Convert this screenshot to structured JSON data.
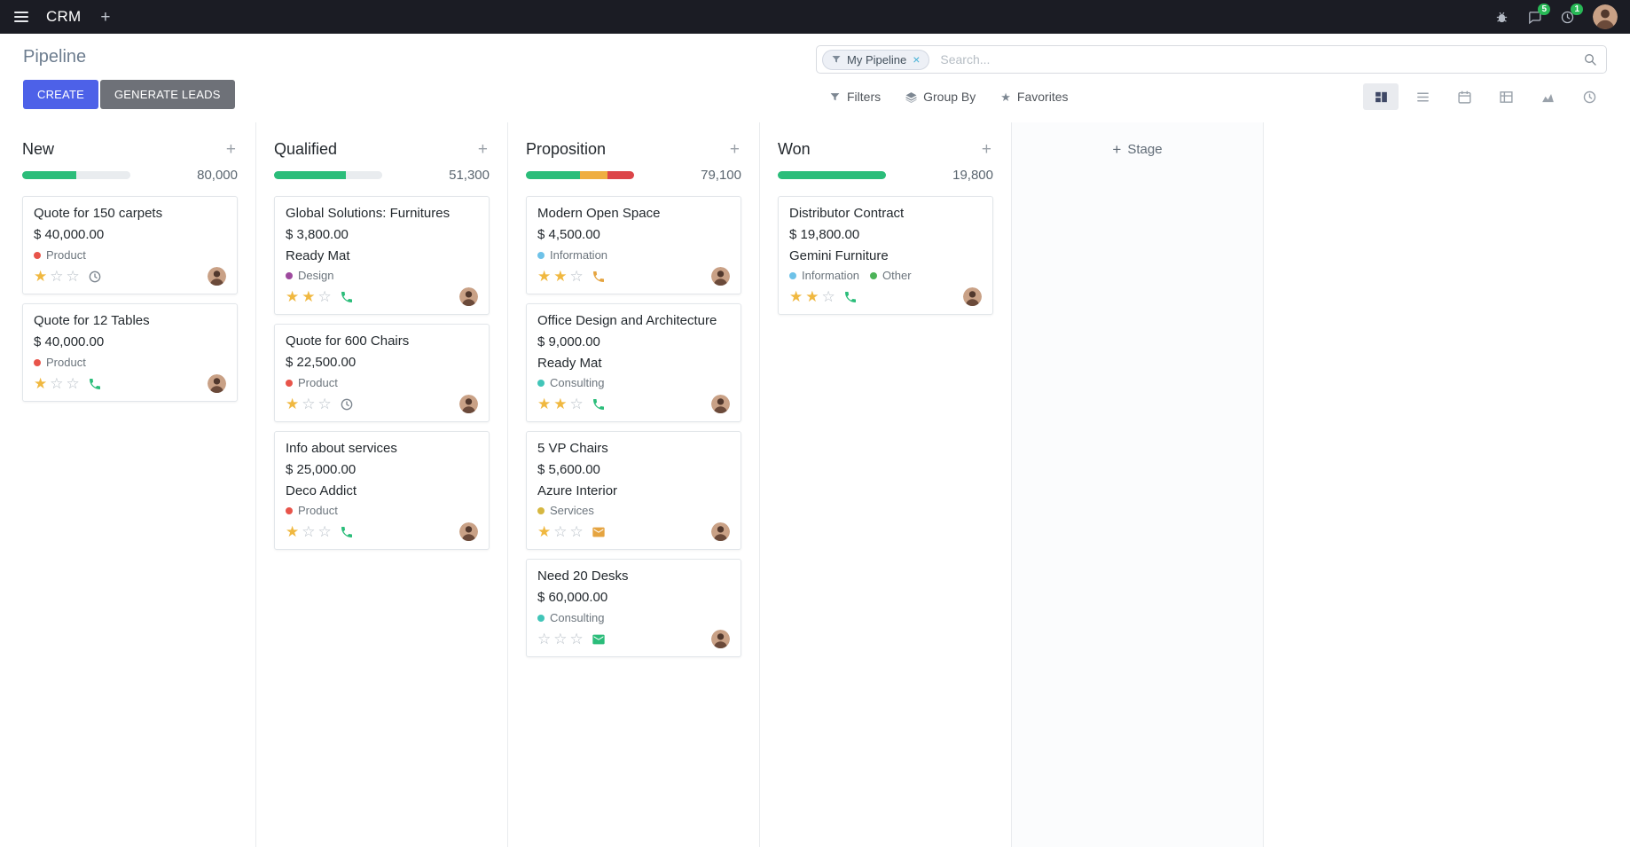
{
  "navbar": {
    "app_name": "CRM",
    "messages_badge": "5",
    "activities_badge": "1"
  },
  "control_panel": {
    "title": "Pipeline",
    "buttons": {
      "create": "CREATE",
      "generate_leads": "GENERATE LEADS"
    },
    "search": {
      "facet": "My Pipeline",
      "placeholder": "Search..."
    },
    "menus": {
      "filters": "Filters",
      "group_by": "Group By",
      "favorites": "Favorites"
    }
  },
  "colors": {
    "primary": "#4d61e8",
    "success": "#2bbd7a",
    "warning": "#efae41",
    "danger": "#dc4549",
    "star": "#f0b840"
  },
  "board": {
    "add_stage_label": "Stage",
    "columns": [
      {
        "name": "New",
        "total": "80,000",
        "progress": [
          {
            "color": "#2bbd7a",
            "pct": 50
          },
          {
            "color": "#e9ecef",
            "pct": 50
          }
        ],
        "cards": [
          {
            "title": "Quote for 150 carpets",
            "amount": "$ 40,000.00",
            "partner": "",
            "tags": [
              {
                "label": "Product",
                "color": "#e8544a"
              }
            ],
            "stars": 1,
            "activity": {
              "icon": "clock-icon",
              "color": "#7d868f"
            }
          },
          {
            "title": "Quote for 12 Tables",
            "amount": "$ 40,000.00",
            "partner": "",
            "tags": [
              {
                "label": "Product",
                "color": "#e8544a"
              }
            ],
            "stars": 1,
            "activity": {
              "icon": "phone-icon",
              "color": "#2bbd7a"
            }
          }
        ]
      },
      {
        "name": "Qualified",
        "total": "51,300",
        "progress": [
          {
            "color": "#2bbd7a",
            "pct": 66.7
          },
          {
            "color": "#e9ecef",
            "pct": 33.3
          }
        ],
        "cards": [
          {
            "title": "Global Solutions: Furnitures",
            "amount": "$ 3,800.00",
            "partner": "Ready Mat",
            "tags": [
              {
                "label": "Design",
                "color": "#9e4a9e"
              }
            ],
            "stars": 2,
            "activity": {
              "icon": "phone-icon",
              "color": "#2bbd7a"
            }
          },
          {
            "title": "Quote for 600 Chairs",
            "amount": "$ 22,500.00",
            "partner": "",
            "tags": [
              {
                "label": "Product",
                "color": "#e8544a"
              }
            ],
            "stars": 1,
            "activity": {
              "icon": "clock-icon",
              "color": "#7d868f"
            }
          },
          {
            "title": "Info about services",
            "amount": "$ 25,000.00",
            "partner": "Deco Addict",
            "tags": [
              {
                "label": "Product",
                "color": "#e8544a"
              }
            ],
            "stars": 1,
            "activity": {
              "icon": "phone-icon",
              "color": "#2bbd7a"
            }
          }
        ]
      },
      {
        "name": "Proposition",
        "total": "79,100",
        "progress": [
          {
            "color": "#2bbd7a",
            "pct": 50
          },
          {
            "color": "#efae41",
            "pct": 25
          },
          {
            "color": "#dc4549",
            "pct": 25
          }
        ],
        "cards": [
          {
            "title": "Modern Open Space",
            "amount": "$ 4,500.00",
            "partner": "",
            "tags": [
              {
                "label": "Information",
                "color": "#6ec2e8"
              }
            ],
            "stars": 2,
            "activity": {
              "icon": "phone-icon",
              "color": "#e5a440"
            }
          },
          {
            "title": "Office Design and Architecture",
            "amount": "$ 9,000.00",
            "partner": "Ready Mat",
            "tags": [
              {
                "label": "Consulting",
                "color": "#41c5b8"
              }
            ],
            "stars": 2,
            "activity": {
              "icon": "phone-icon",
              "color": "#2bbd7a"
            }
          },
          {
            "title": "5 VP Chairs",
            "amount": "$ 5,600.00",
            "partner": "Azure Interior",
            "tags": [
              {
                "label": "Services",
                "color": "#d6b740"
              }
            ],
            "stars": 1,
            "activity": {
              "icon": "envelope-icon",
              "color": "#e5a440"
            }
          },
          {
            "title": "Need 20 Desks",
            "amount": "$ 60,000.00",
            "partner": "",
            "tags": [
              {
                "label": "Consulting",
                "color": "#41c5b8"
              }
            ],
            "stars": 0,
            "activity": {
              "icon": "envelope-icon",
              "color": "#2bbd7a"
            }
          }
        ]
      },
      {
        "name": "Won",
        "total": "19,800",
        "progress": [
          {
            "color": "#2bbd7a",
            "pct": 100
          }
        ],
        "cards": [
          {
            "title": "Distributor Contract",
            "amount": "$ 19,800.00",
            "partner": "Gemini Furniture",
            "tags": [
              {
                "label": "Information",
                "color": "#6ec2e8"
              },
              {
                "label": "Other",
                "color": "#4cb358"
              }
            ],
            "stars": 2,
            "activity": {
              "icon": "phone-icon",
              "color": "#2bbd7a"
            }
          }
        ]
      }
    ]
  }
}
